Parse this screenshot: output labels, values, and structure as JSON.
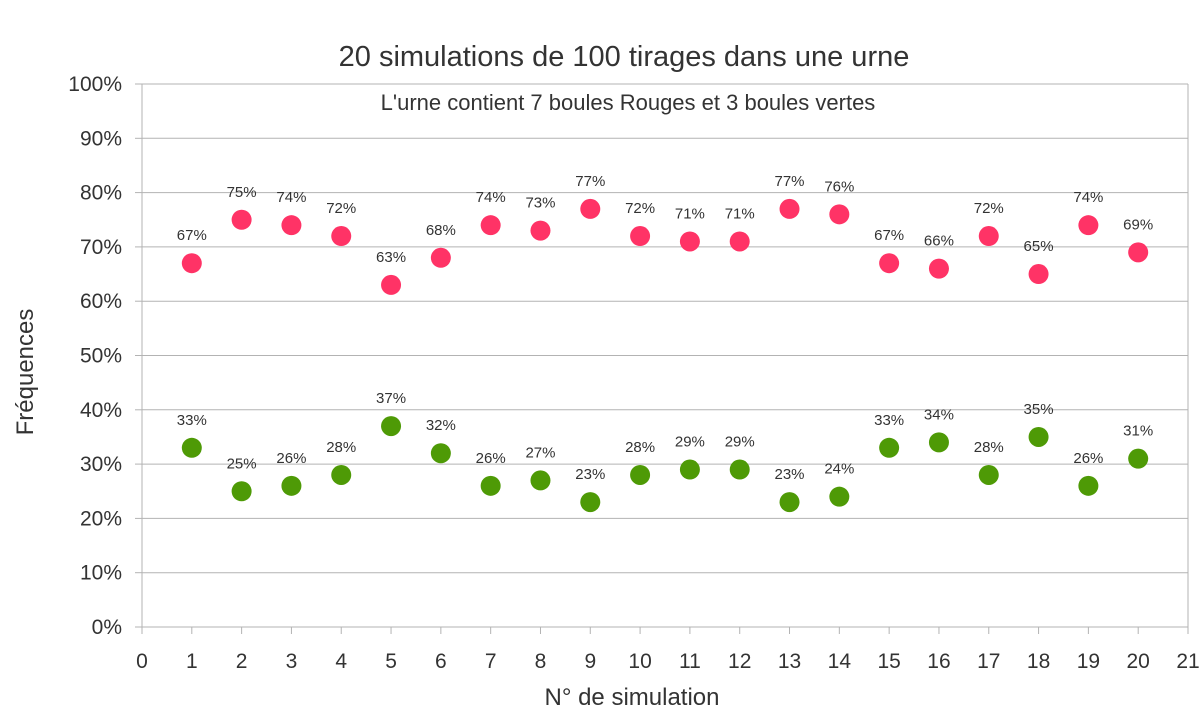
{
  "chart_data": {
    "type": "scatter",
    "title": "20 simulations de 100 tirages dans une urne",
    "subtitle": "L'urne contient 7 boules Rouges et 3 boules vertes",
    "xlabel": "N° de simulation",
    "ylabel": "Fréquences",
    "xlim": [
      0,
      21
    ],
    "ylim": [
      0,
      100
    ],
    "x_ticks": [
      "0",
      "1",
      "2",
      "3",
      "4",
      "5",
      "6",
      "7",
      "8",
      "9",
      "10",
      "11",
      "12",
      "13",
      "14",
      "15",
      "16",
      "17",
      "18",
      "19",
      "20",
      "21"
    ],
    "y_ticks": [
      "0%",
      "10%",
      "20%",
      "30%",
      "40%",
      "50%",
      "60%",
      "70%",
      "80%",
      "90%",
      "100%"
    ],
    "grid": true,
    "series": [
      {
        "name": "Rouges",
        "color": "#ff3366",
        "x": [
          1,
          2,
          3,
          4,
          5,
          6,
          7,
          8,
          9,
          10,
          11,
          12,
          13,
          14,
          15,
          16,
          17,
          18,
          19,
          20
        ],
        "values": [
          67,
          75,
          74,
          72,
          63,
          68,
          74,
          73,
          77,
          72,
          71,
          71,
          77,
          76,
          67,
          66,
          72,
          65,
          74,
          69
        ],
        "labels": [
          "67%",
          "75%",
          "74%",
          "72%",
          "63%",
          "68%",
          "74%",
          "73%",
          "77%",
          "72%",
          "71%",
          "71%",
          "77%",
          "76%",
          "67%",
          "66%",
          "72%",
          "65%",
          "74%",
          "69%"
        ]
      },
      {
        "name": "vertes",
        "color": "#4e9a06",
        "x": [
          1,
          2,
          3,
          4,
          5,
          6,
          7,
          8,
          9,
          10,
          11,
          12,
          13,
          14,
          15,
          16,
          17,
          18,
          19,
          20
        ],
        "values": [
          33,
          25,
          26,
          28,
          37,
          32,
          26,
          27,
          23,
          28,
          29,
          29,
          23,
          24,
          33,
          34,
          28,
          35,
          26,
          31
        ],
        "labels": [
          "33%",
          "25%",
          "26%",
          "28%",
          "37%",
          "32%",
          "26%",
          "27%",
          "23%",
          "28%",
          "29%",
          "29%",
          "23%",
          "24%",
          "33%",
          "34%",
          "28%",
          "35%",
          "26%",
          "31%"
        ]
      }
    ]
  }
}
